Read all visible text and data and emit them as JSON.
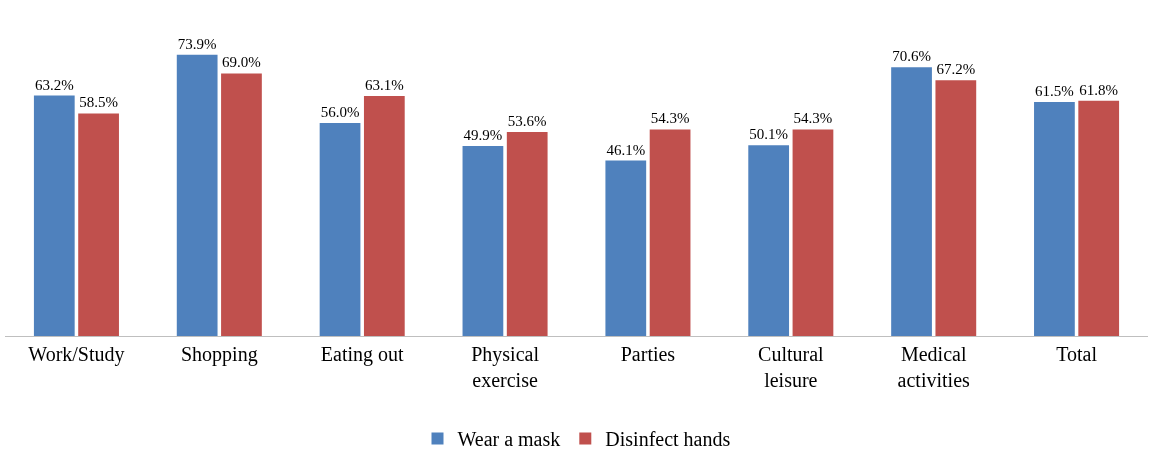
{
  "chart_data": {
    "type": "bar",
    "categories": [
      "Work/Study",
      "Shopping",
      "Eating out",
      "Physical exercise",
      "Parties",
      "Cultural leisure",
      "Medical activities",
      "Total"
    ],
    "series": [
      {
        "name": "Wear a mask",
        "color": "#4f81bd",
        "values": [
          63.2,
          73.9,
          56.0,
          49.9,
          46.1,
          50.1,
          70.6,
          61.5
        ],
        "value_labels": [
          "63.2%",
          "73.9%",
          "56.0%",
          "49.9%",
          "46.1%",
          "50.1%",
          "70.6%",
          "61.5%"
        ]
      },
      {
        "name": "Disinfect hands",
        "color": "#c0504d",
        "values": [
          58.5,
          69.0,
          63.1,
          53.6,
          54.3,
          54.3,
          67.2,
          61.8
        ],
        "value_labels": [
          "58.5%",
          "69.0%",
          "63.1%",
          "53.6%",
          "54.3%",
          "54.3%",
          "67.2%",
          "61.8%"
        ]
      }
    ],
    "legend": "bottom"
  }
}
